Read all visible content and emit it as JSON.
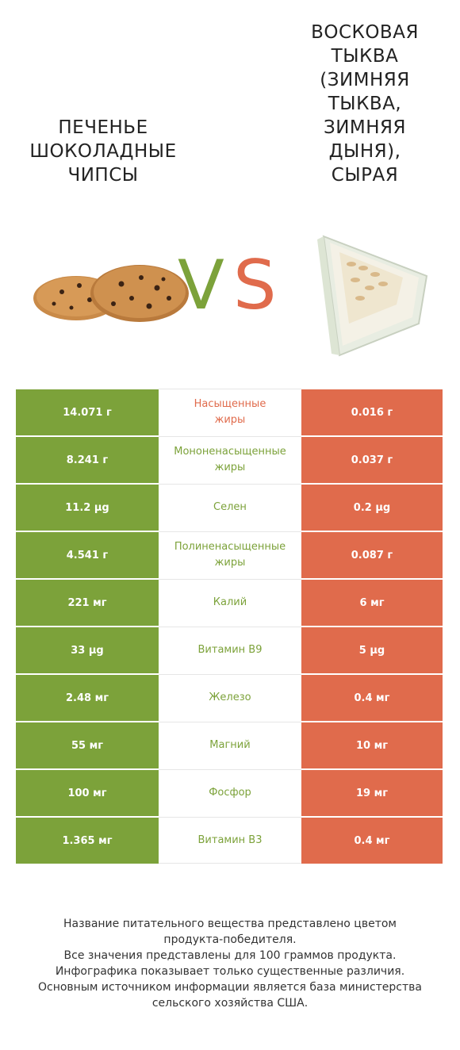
{
  "food_left": {
    "title": "ПЕЧЕНЬЕ\nШОКОЛАДНЫЕ\nЧИПСЫ",
    "color": "#7ca23a"
  },
  "food_right": {
    "title": "ВОСКОВАЯ\nТЫКВА\n(ЗИМНЯЯ\nТЫКВА,\nЗИМНЯЯ\nДЫНЯ),\nСЫРАЯ",
    "color": "#e06b4c"
  },
  "vs": {
    "v": "V",
    "s": "S"
  },
  "rows": [
    {
      "left": "14.071 г",
      "nutrient": "Насыщенные\nжиры",
      "right": "0.016 г",
      "winner_color": "#e06b4c"
    },
    {
      "left": "8.241 г",
      "nutrient": "Мононенасыщенные\nжиры",
      "right": "0.037 г",
      "winner_color": "#7ca23a"
    },
    {
      "left": "11.2 µg",
      "nutrient": "Селен",
      "right": "0.2 µg",
      "winner_color": "#7ca23a"
    },
    {
      "left": "4.541 г",
      "nutrient": "Полиненасыщенные\nжиры",
      "right": "0.087 г",
      "winner_color": "#7ca23a"
    },
    {
      "left": "221 мг",
      "nutrient": "Калий",
      "right": "6 мг",
      "winner_color": "#7ca23a"
    },
    {
      "left": "33 µg",
      "nutrient": "Витамин B9",
      "right": "5 µg",
      "winner_color": "#7ca23a"
    },
    {
      "left": "2.48 мг",
      "nutrient": "Железо",
      "right": "0.4 мг",
      "winner_color": "#7ca23a"
    },
    {
      "left": "55 мг",
      "nutrient": "Магний",
      "right": "10 мг",
      "winner_color": "#7ca23a"
    },
    {
      "left": "100 мг",
      "nutrient": "Фосфор",
      "right": "19 мг",
      "winner_color": "#7ca23a"
    },
    {
      "left": "1.365 мг",
      "nutrient": "Витамин B3",
      "right": "0.4 мг",
      "winner_color": "#7ca23a"
    }
  ],
  "footnote": {
    "line1": "Название питательного вещества представлено цветом",
    "line2": "продукта-победителя.",
    "line3": "Все значения представлены для 100 граммов продукта.",
    "line4": "Инфографика показывает только существенные различия.",
    "line5": "Основным источником информации является база министерства",
    "line6": "сельского хозяйства США."
  }
}
